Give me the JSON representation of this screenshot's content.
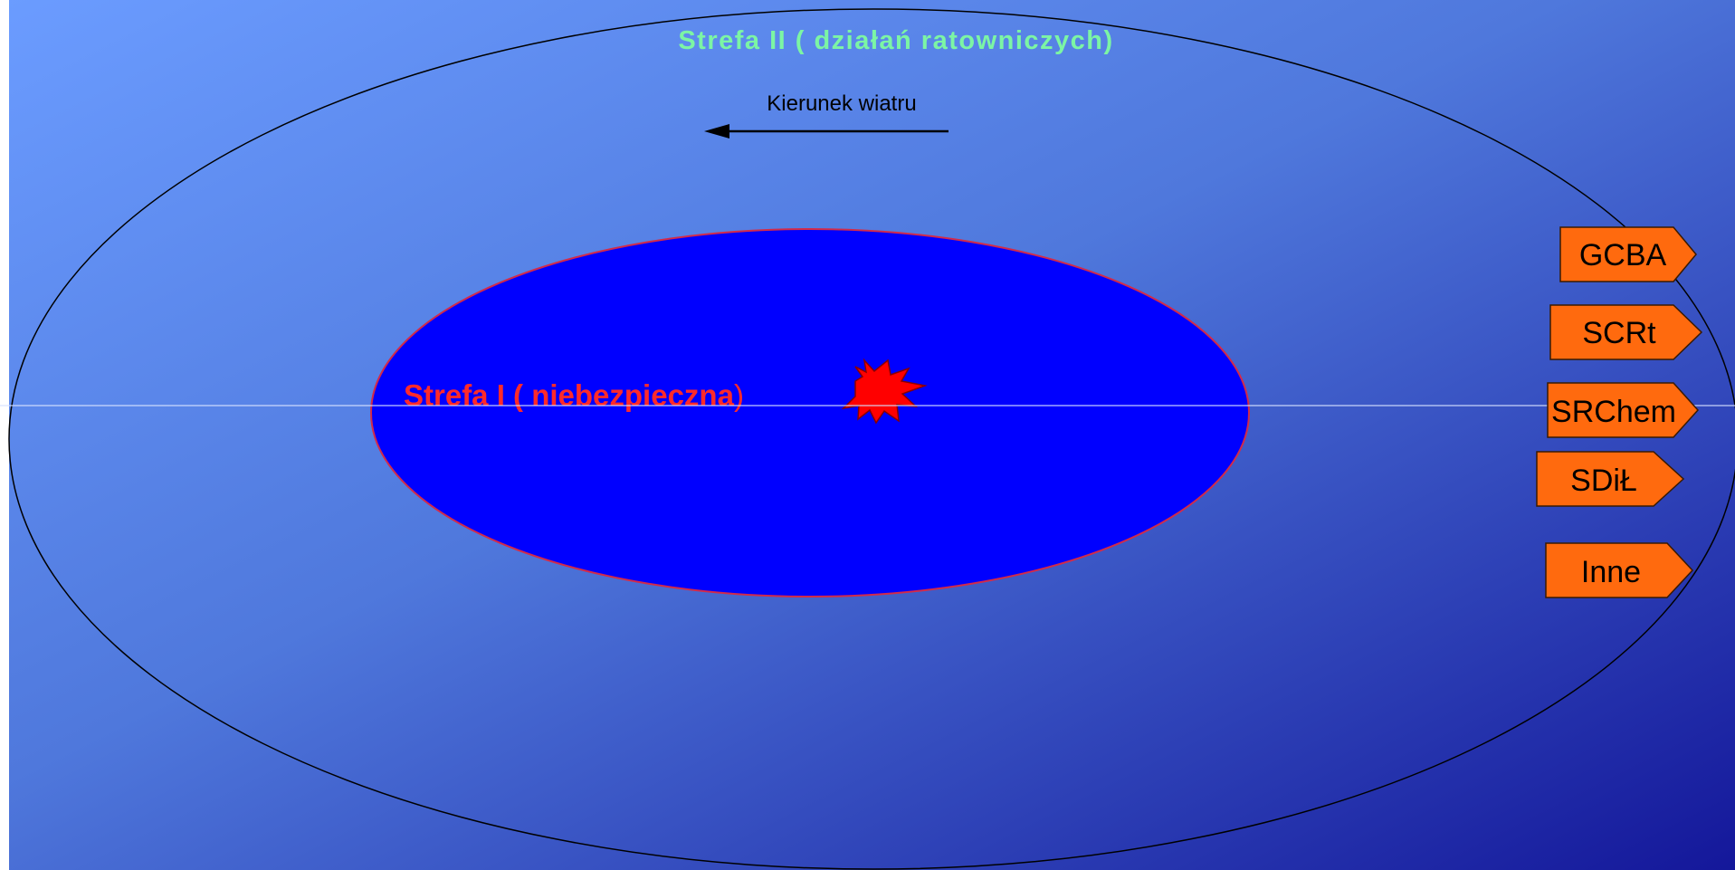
{
  "zone_outer": {
    "label": "Strefa II ( działań ratowniczych)"
  },
  "zone_inner": {
    "label_main": "Strefa I ( niebezpieczna",
    "label_close": ")"
  },
  "wind": {
    "label": "Kierunek wiatru"
  },
  "units": [
    {
      "label": "GCBA"
    },
    {
      "label": "SCRt"
    },
    {
      "label": "SRChem"
    },
    {
      "label": "SDiŁ"
    },
    {
      "label": "Inne"
    }
  ],
  "colors": {
    "background_light": "#6699ff",
    "background_dark": "#15199a",
    "inner_zone_fill": "#0000ff",
    "inner_zone_stroke": "#d22a4a",
    "zone2_label": "#7cf5a4",
    "zone1_label": "#ff2a2a",
    "tag_fill": "#ff6a0e",
    "explosion": "#ff0000"
  },
  "icons": {
    "explosion": "explosion-icon",
    "wind_arrow": "arrow-left-icon"
  }
}
